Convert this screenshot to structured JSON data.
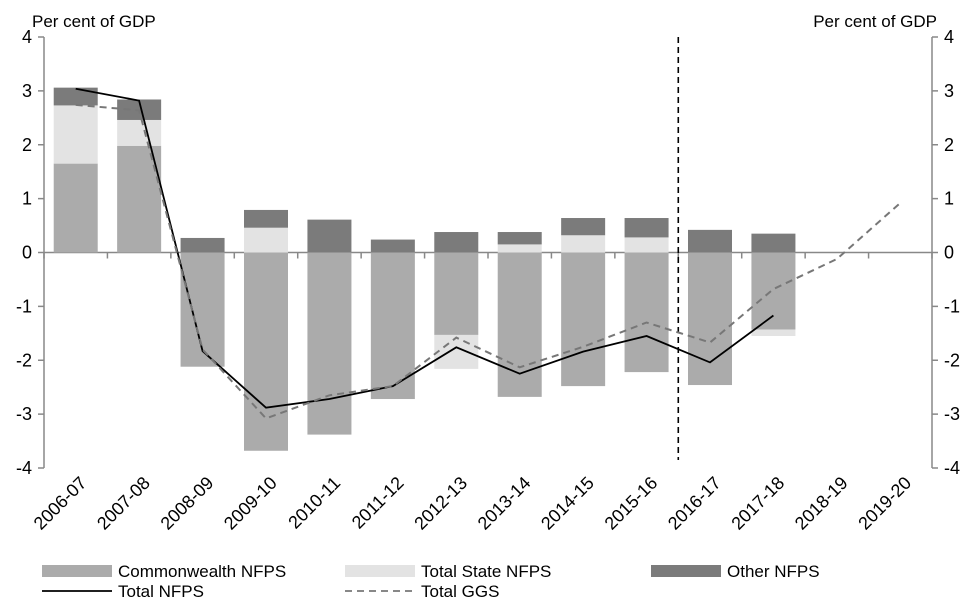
{
  "chart_data": {
    "type": "bar",
    "left_axis_label": "Per cent of GDP",
    "right_axis_label": "Per cent of GDP",
    "ylim": [
      -4,
      4
    ],
    "yticks": [
      "4",
      "3",
      "2",
      "1",
      "0",
      "-1",
      "-2",
      "-3",
      "-4"
    ],
    "categories": [
      "2006-07",
      "2007-08",
      "2008-09",
      "2009-10",
      "2010-11",
      "2011-12",
      "2012-13",
      "2013-14",
      "2014-15",
      "2015-16",
      "2016-17",
      "2017-18",
      "2018-19",
      "2019-20"
    ],
    "forecast_divider_after": "2015-16",
    "stacked_series": [
      {
        "name": "Commonwealth NFPS",
        "color": "#ababab",
        "values": [
          1.65,
          1.98,
          -2.12,
          -3.68,
          -3.38,
          -2.72,
          -1.53,
          -2.68,
          -2.48,
          -2.22,
          -2.46,
          -1.43,
          null,
          null
        ]
      },
      {
        "name": "Total State NFPS",
        "color": "#e3e3e3",
        "values": [
          1.08,
          0.48,
          0.0,
          0.46,
          0.0,
          0.0,
          -0.63,
          0.15,
          0.32,
          0.28,
          0.0,
          -0.12,
          null,
          null
        ]
      },
      {
        "name": "Other NFPS",
        "color": "#7b7b7b",
        "values": [
          0.33,
          0.38,
          0.27,
          0.33,
          0.61,
          0.24,
          0.38,
          0.23,
          0.32,
          0.36,
          0.42,
          0.35,
          null,
          null
        ]
      }
    ],
    "line_series": [
      {
        "name": "Total NFPS",
        "color": "#000000",
        "dash": "solid",
        "values": [
          3.04,
          2.82,
          -1.83,
          -2.88,
          -2.72,
          -2.48,
          -1.76,
          -2.25,
          -1.84,
          -1.55,
          -2.04,
          -1.17,
          null,
          null
        ]
      },
      {
        "name": "Total GGS",
        "color": "#777777",
        "dash": "dashed",
        "values": [
          2.74,
          2.64,
          -1.8,
          -3.08,
          -2.65,
          -2.48,
          -1.58,
          -2.13,
          -1.75,
          -1.3,
          -1.67,
          -0.68,
          -0.12,
          0.92
        ]
      }
    ]
  }
}
